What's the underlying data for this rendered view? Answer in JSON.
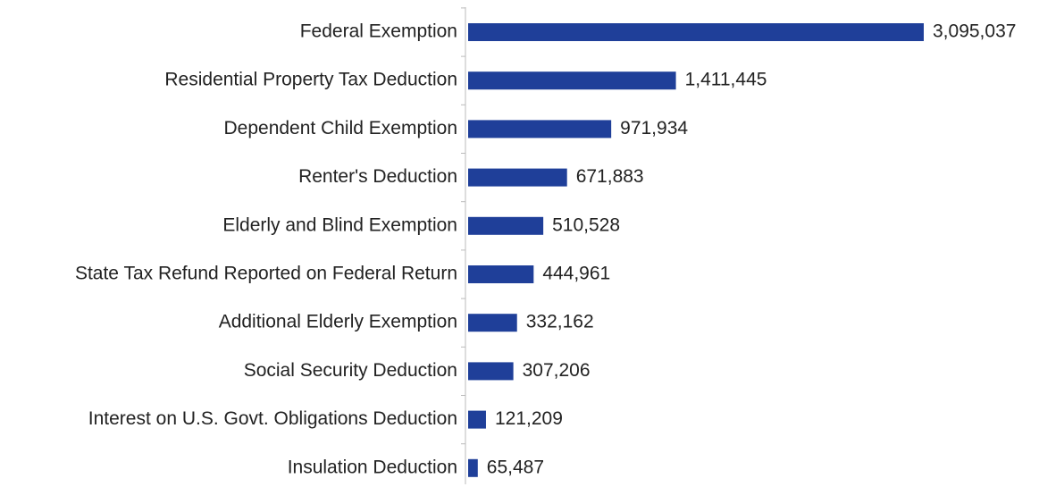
{
  "chart_data": {
    "type": "barh",
    "color": "#1f3f99",
    "categories": [
      "Federal Exemption",
      "Residential Property Tax Deduction",
      "Dependent Child Exemption",
      "Renter's Deduction",
      "Elderly and Blind Exemption",
      "State Tax Refund Reported on Federal Return",
      "Additional Elderly Exemption",
      "Social Security Deduction",
      "Interest on U.S. Govt. Obligations Deduction",
      "Insulation Deduction"
    ],
    "values": [
      3095037,
      1411445,
      971934,
      671883,
      510528,
      444961,
      332162,
      307206,
      121209,
      65487
    ],
    "value_labels": [
      "3,095,037",
      "1,411,445",
      "971,934",
      "671,883",
      "510,528",
      "444,961",
      "332,162",
      "307,206",
      "121,209",
      "65,487"
    ]
  }
}
